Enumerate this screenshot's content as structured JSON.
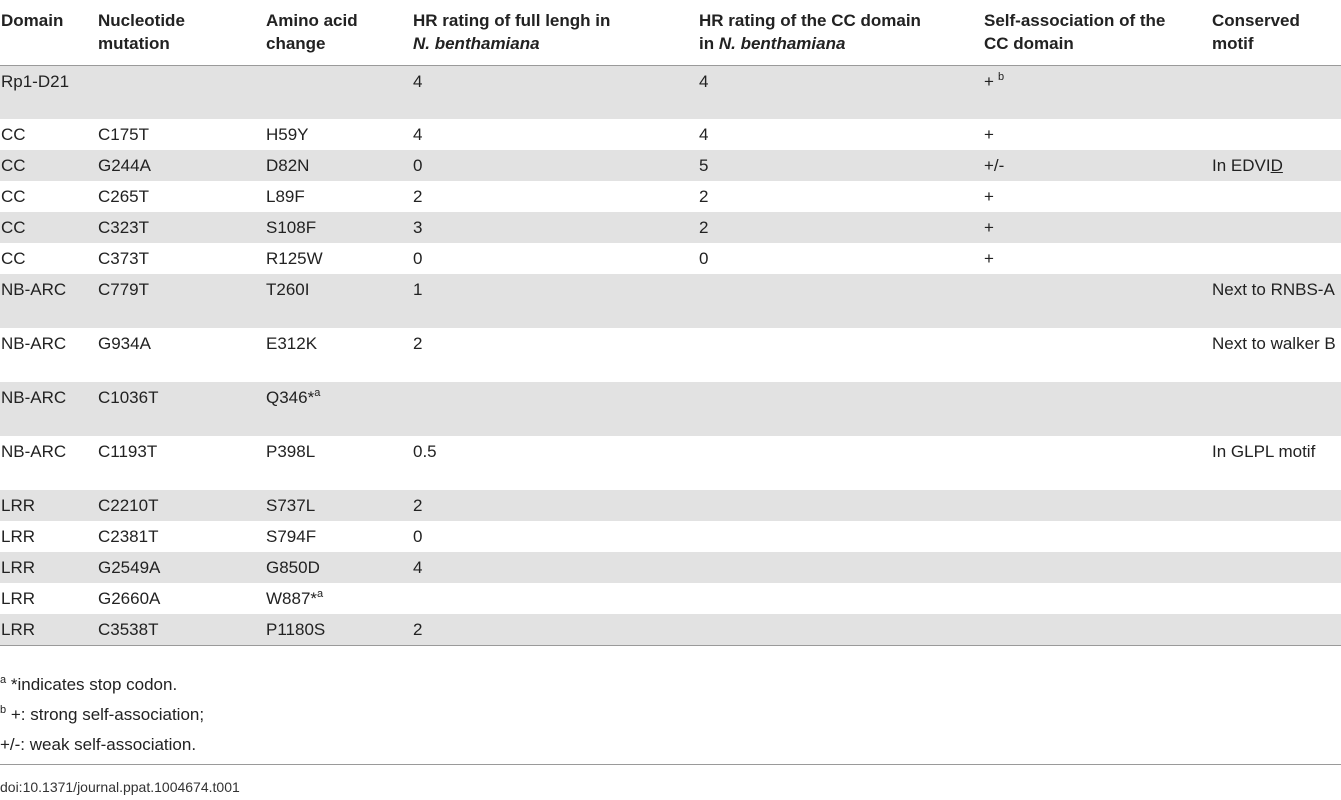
{
  "table": {
    "headers": [
      {
        "line1": "Domain"
      },
      {
        "line1": "Nucleotide",
        "line2": "mutation"
      },
      {
        "line1": "Amino acid",
        "line2": "change"
      },
      {
        "line1": "HR rating of full lengh in",
        "line2": "N. benthamiana"
      },
      {
        "line1": "HR rating of the CC domain",
        "line2_prefix": "in ",
        "line2_italic": "N. benthamiana"
      },
      {
        "line1": "Self-association of the",
        "line2": "CC domain"
      },
      {
        "line1": "Conserved",
        "line2": "motif"
      }
    ],
    "rows": [
      {
        "domain": "Rp1-D21",
        "nucleotide": "",
        "amino": "",
        "amino_sup": "",
        "hr_full": "4",
        "hr_cc": "4",
        "self": "+",
        "self_sup": "b",
        "motif": "",
        "motif_u": "",
        "motif_post": ""
      },
      {
        "domain": "CC",
        "nucleotide": "C175T",
        "amino": "H59Y",
        "amino_sup": "",
        "hr_full": "4",
        "hr_cc": "4",
        "self": "+",
        "self_sup": "",
        "motif": "",
        "motif_u": "",
        "motif_post": ""
      },
      {
        "domain": "CC",
        "nucleotide": "G244A",
        "amino": "D82N",
        "amino_sup": "",
        "hr_full": "0",
        "hr_cc": "5",
        "self": "+/-",
        "self_sup": "",
        "motif": "In EDVI",
        "motif_u": "D",
        "motif_post": ""
      },
      {
        "domain": "CC",
        "nucleotide": "C265T",
        "amino": "L89F",
        "amino_sup": "",
        "hr_full": "2",
        "hr_cc": "2",
        "self": "+",
        "self_sup": "",
        "motif": "",
        "motif_u": "",
        "motif_post": ""
      },
      {
        "domain": "CC",
        "nucleotide": "C323T",
        "amino": "S108F",
        "amino_sup": "",
        "hr_full": "3",
        "hr_cc": "2",
        "self": "+",
        "self_sup": "",
        "motif": "",
        "motif_u": "",
        "motif_post": ""
      },
      {
        "domain": "CC",
        "nucleotide": "C373T",
        "amino": "R125W",
        "amino_sup": "",
        "hr_full": "0",
        "hr_cc": "0",
        "self": "+",
        "self_sup": "",
        "motif": "",
        "motif_u": "",
        "motif_post": ""
      },
      {
        "domain": "NB-ARC",
        "nucleotide": "C779T",
        "amino": "T260I",
        "amino_sup": "",
        "hr_full": "1",
        "hr_cc": "",
        "self": "",
        "self_sup": "",
        "motif": "Next to RNBS-A",
        "motif_u": "",
        "motif_post": ""
      },
      {
        "domain": "NB-ARC",
        "nucleotide": "G934A",
        "amino": "E312K",
        "amino_sup": "",
        "hr_full": "2",
        "hr_cc": "",
        "self": "",
        "self_sup": "",
        "motif": "Next to walker B",
        "motif_u": "",
        "motif_post": ""
      },
      {
        "domain": "NB-ARC",
        "nucleotide": "C1036T",
        "amino": "Q346*",
        "amino_sup": "a",
        "hr_full": "",
        "hr_cc": "",
        "self": "",
        "self_sup": "",
        "motif": "",
        "motif_u": "",
        "motif_post": ""
      },
      {
        "domain": "NB-ARC",
        "nucleotide": "C1193T",
        "amino": "P398L",
        "amino_sup": "",
        "hr_full": "0.5",
        "hr_cc": "",
        "self": "",
        "self_sup": "",
        "motif": "In GLPL motif",
        "motif_u": "",
        "motif_post": ""
      },
      {
        "domain": "LRR",
        "nucleotide": "C2210T",
        "amino": "S737L",
        "amino_sup": "",
        "hr_full": "2",
        "hr_cc": "",
        "self": "",
        "self_sup": "",
        "motif": "",
        "motif_u": "",
        "motif_post": ""
      },
      {
        "domain": "LRR",
        "nucleotide": "C2381T",
        "amino": "S794F",
        "amino_sup": "",
        "hr_full": "0",
        "hr_cc": "",
        "self": "",
        "self_sup": "",
        "motif": "",
        "motif_u": "",
        "motif_post": ""
      },
      {
        "domain": "LRR",
        "nucleotide": "G2549A",
        "amino": "G850D",
        "amino_sup": "",
        "hr_full": "4",
        "hr_cc": "",
        "self": "",
        "self_sup": "",
        "motif": "",
        "motif_u": "",
        "motif_post": ""
      },
      {
        "domain": "LRR",
        "nucleotide": "G2660A",
        "amino": "W887*",
        "amino_sup": "a",
        "hr_full": "",
        "hr_cc": "",
        "self": "",
        "self_sup": "",
        "motif": "",
        "motif_u": "",
        "motif_post": ""
      },
      {
        "domain": "LRR",
        "nucleotide": "C3538T",
        "amino": "P1180S",
        "amino_sup": "",
        "hr_full": "2",
        "hr_cc": "",
        "self": "",
        "self_sup": "",
        "motif": "",
        "motif_u": "",
        "motif_post": ""
      }
    ]
  },
  "footnotes": [
    {
      "marker": "a",
      "text": " *indicates stop codon."
    },
    {
      "marker": "b",
      "text": " +: strong self-association;"
    },
    {
      "marker": "",
      "text": "+/-: weak self-association."
    }
  ],
  "doi": "doi:10.1371/journal.ppat.1004674.t001"
}
